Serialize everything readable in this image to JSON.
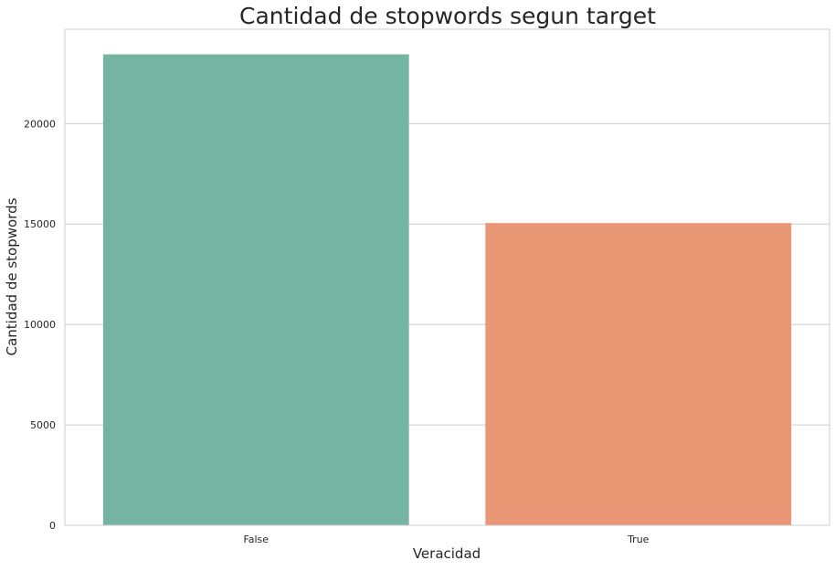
{
  "chart_data": {
    "type": "bar",
    "title": "Cantidad de stopwords segun target",
    "xlabel": "Veracidad",
    "ylabel": "Cantidad de stopwords",
    "categories": [
      "False",
      "True"
    ],
    "values": [
      23450,
      15050
    ],
    "ylim": [
      0,
      24700
    ],
    "yticks": [
      0,
      5000,
      10000,
      15000,
      20000
    ],
    "ytick_labels": [
      "0",
      "5000",
      "10000",
      "15000",
      "20000"
    ],
    "bar_colors": [
      "#74b4a0",
      "#e99674"
    ],
    "grid": "horizontal",
    "legend": "none"
  }
}
